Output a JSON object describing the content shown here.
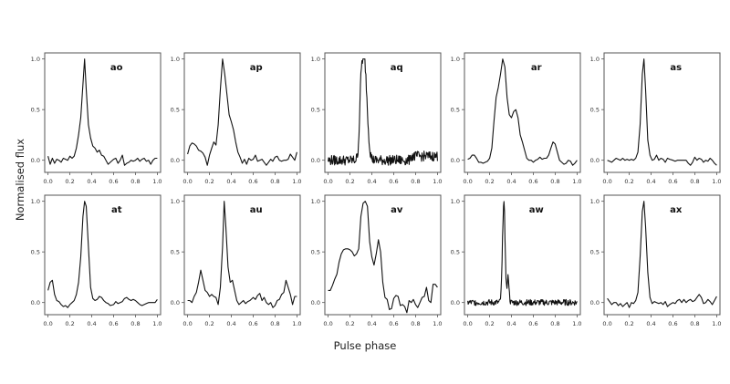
{
  "figure": {
    "ylabel": "Normalised flux",
    "xlabel": "Pulse phase"
  },
  "chart_data": {
    "type": "line",
    "layout": "2x5 small multiples",
    "xlabel": "Pulse phase",
    "ylabel": "Normalised flux",
    "xlim": [
      -0.03,
      1.03
    ],
    "ylim": [
      -0.12,
      1.06
    ],
    "xticks": [
      "0.0",
      "0.2",
      "0.4",
      "0.6",
      "0.8",
      "1.0"
    ],
    "yticks": [
      "0.0",
      "0.5",
      "1.0"
    ],
    "grid": false,
    "legend": "none",
    "panels": [
      {
        "label": "ao",
        "x": [
          0,
          0.02,
          0.04,
          0.06,
          0.08,
          0.1,
          0.12,
          0.14,
          0.16,
          0.18,
          0.2,
          0.22,
          0.24,
          0.26,
          0.28,
          0.3,
          0.32,
          0.335,
          0.35,
          0.37,
          0.39,
          0.41,
          0.43,
          0.45,
          0.47,
          0.49,
          0.51,
          0.53,
          0.55,
          0.57,
          0.6,
          0.62,
          0.64,
          0.66,
          0.68,
          0.7,
          0.72,
          0.74,
          0.76,
          0.78,
          0.8,
          0.82,
          0.84,
          0.86,
          0.88,
          0.9,
          0.92,
          0.94,
          0.96,
          0.98,
          1.0
        ],
        "y": [
          0.04,
          -0.04,
          0.02,
          -0.03,
          0.01,
          0.0,
          -0.02,
          0.02,
          0.01,
          0.0,
          0.04,
          0.02,
          0.04,
          0.12,
          0.25,
          0.42,
          0.75,
          1.0,
          0.7,
          0.35,
          0.22,
          0.14,
          0.12,
          0.08,
          0.1,
          0.05,
          0.04,
          0.0,
          -0.04,
          -0.02,
          0.01,
          0.02,
          -0.03,
          0.0,
          0.05,
          -0.05,
          -0.03,
          -0.02,
          0.0,
          -0.01,
          0.0,
          0.02,
          -0.01,
          0.01,
          0.02,
          -0.01,
          0.0,
          -0.04,
          0.0,
          0.02,
          0.02
        ]
      },
      {
        "label": "ap",
        "x": [
          0,
          0.02,
          0.04,
          0.06,
          0.08,
          0.1,
          0.12,
          0.14,
          0.16,
          0.18,
          0.2,
          0.22,
          0.24,
          0.26,
          0.28,
          0.3,
          0.32,
          0.34,
          0.36,
          0.38,
          0.4,
          0.42,
          0.44,
          0.46,
          0.48,
          0.5,
          0.52,
          0.54,
          0.56,
          0.58,
          0.6,
          0.62,
          0.64,
          0.66,
          0.68,
          0.7,
          0.72,
          0.74,
          0.76,
          0.78,
          0.8,
          0.82,
          0.84,
          0.86,
          0.88,
          0.9,
          0.92,
          0.94,
          0.96,
          0.98,
          1.0
        ],
        "y": [
          0.06,
          0.14,
          0.17,
          0.16,
          0.14,
          0.1,
          0.09,
          0.07,
          0.03,
          -0.05,
          0.05,
          0.12,
          0.18,
          0.15,
          0.35,
          0.7,
          1.0,
          0.85,
          0.65,
          0.45,
          0.38,
          0.3,
          0.18,
          0.08,
          0.03,
          -0.03,
          0.01,
          -0.04,
          0.02,
          0.0,
          0.01,
          0.05,
          -0.01,
          0.0,
          0.01,
          -0.02,
          -0.05,
          -0.02,
          0.01,
          -0.01,
          0.03,
          0.04,
          0.0,
          -0.01,
          0.0,
          0.0,
          0.01,
          0.06,
          0.03,
          0.0,
          0.08
        ]
      },
      {
        "label": "aq",
        "x": "dense (~200 pts); noisy baseline ≈0.0 ±0.05, sharp peak 1.0 at phase ≈0.33, shoulder ≈0.5 at phase ≈0.30",
        "peak_phase": 0.33,
        "peak_value": 1.0,
        "baseline": 0.0,
        "noise": 0.05
      },
      {
        "label": "ar",
        "x": [
          0,
          0.02,
          0.04,
          0.06,
          0.08,
          0.1,
          0.12,
          0.14,
          0.16,
          0.18,
          0.2,
          0.22,
          0.24,
          0.26,
          0.28,
          0.3,
          0.32,
          0.34,
          0.36,
          0.38,
          0.4,
          0.42,
          0.44,
          0.46,
          0.48,
          0.5,
          0.52,
          0.54,
          0.56,
          0.58,
          0.6,
          0.62,
          0.64,
          0.66,
          0.68,
          0.7,
          0.72,
          0.74,
          0.76,
          0.78,
          0.8,
          0.82,
          0.84,
          0.86,
          0.88,
          0.9,
          0.92,
          0.94,
          0.96,
          0.98,
          1.0
        ],
        "y": [
          0.01,
          0.02,
          0.05,
          0.05,
          0.02,
          -0.02,
          -0.02,
          -0.03,
          -0.02,
          -0.01,
          0.02,
          0.12,
          0.38,
          0.62,
          0.72,
          0.85,
          1.0,
          0.92,
          0.62,
          0.45,
          0.42,
          0.48,
          0.5,
          0.42,
          0.25,
          0.18,
          0.1,
          0.02,
          0.0,
          0.0,
          -0.02,
          0.0,
          0.01,
          0.03,
          0.01,
          0.02,
          0.02,
          0.05,
          0.12,
          0.18,
          0.16,
          0.08,
          0.0,
          -0.02,
          -0.04,
          -0.03,
          0.0,
          -0.01,
          -0.05,
          -0.03,
          0.0
        ]
      },
      {
        "label": "as",
        "x": [
          0,
          0.02,
          0.04,
          0.06,
          0.08,
          0.1,
          0.12,
          0.14,
          0.16,
          0.18,
          0.2,
          0.22,
          0.24,
          0.26,
          0.28,
          0.3,
          0.32,
          0.335,
          0.35,
          0.37,
          0.39,
          0.41,
          0.43,
          0.45,
          0.47,
          0.49,
          0.51,
          0.53,
          0.55,
          0.57,
          0.6,
          0.62,
          0.64,
          0.66,
          0.68,
          0.7,
          0.72,
          0.74,
          0.76,
          0.78,
          0.8,
          0.82,
          0.84,
          0.86,
          0.88,
          0.9,
          0.92,
          0.94,
          0.96,
          0.98,
          1.0
        ],
        "y": [
          0.0,
          -0.01,
          -0.02,
          0.0,
          0.02,
          0.01,
          0.0,
          0.02,
          0.0,
          0.01,
          0.0,
          0.01,
          0.0,
          0.02,
          0.08,
          0.35,
          0.85,
          1.0,
          0.7,
          0.2,
          0.05,
          0.0,
          0.01,
          0.05,
          0.0,
          0.02,
          0.01,
          -0.02,
          0.02,
          0.01,
          0.0,
          -0.01,
          0.0,
          0.0,
          0.0,
          0.0,
          0.0,
          -0.03,
          -0.05,
          -0.02,
          0.03,
          0.0,
          0.02,
          0.01,
          -0.02,
          0.0,
          -0.01,
          0.02,
          0.0,
          -0.03,
          -0.05
        ]
      },
      {
        "label": "at",
        "x": [
          0,
          0.02,
          0.04,
          0.06,
          0.08,
          0.1,
          0.12,
          0.14,
          0.16,
          0.18,
          0.2,
          0.22,
          0.24,
          0.26,
          0.28,
          0.3,
          0.32,
          0.335,
          0.35,
          0.37,
          0.39,
          0.41,
          0.43,
          0.45,
          0.47,
          0.49,
          0.51,
          0.53,
          0.55,
          0.57,
          0.6,
          0.62,
          0.64,
          0.66,
          0.68,
          0.7,
          0.72,
          0.74,
          0.76,
          0.78,
          0.8,
          0.82,
          0.84,
          0.86,
          0.88,
          0.9,
          0.92,
          0.94,
          0.96,
          0.98,
          1.0
        ],
        "y": [
          0.12,
          0.2,
          0.22,
          0.08,
          0.02,
          0.01,
          -0.02,
          -0.04,
          -0.03,
          -0.05,
          -0.02,
          0.0,
          0.02,
          0.08,
          0.2,
          0.45,
          0.85,
          1.0,
          0.95,
          0.55,
          0.15,
          0.04,
          0.02,
          0.03,
          0.06,
          0.05,
          0.02,
          0.0,
          -0.01,
          -0.03,
          -0.02,
          0.01,
          -0.01,
          0.0,
          0.01,
          0.04,
          0.05,
          0.03,
          0.02,
          0.03,
          0.02,
          0.0,
          -0.02,
          -0.03,
          -0.02,
          -0.01,
          0.0,
          0.0,
          0.0,
          0.0,
          0.03
        ]
      },
      {
        "label": "au",
        "x": [
          0,
          0.02,
          0.04,
          0.06,
          0.08,
          0.1,
          0.12,
          0.14,
          0.16,
          0.18,
          0.2,
          0.22,
          0.24,
          0.26,
          0.28,
          0.3,
          0.32,
          0.335,
          0.35,
          0.37,
          0.39,
          0.41,
          0.43,
          0.45,
          0.47,
          0.49,
          0.51,
          0.53,
          0.55,
          0.57,
          0.6,
          0.62,
          0.64,
          0.66,
          0.68,
          0.7,
          0.72,
          0.74,
          0.76,
          0.78,
          0.8,
          0.82,
          0.84,
          0.86,
          0.88,
          0.9,
          0.92,
          0.94,
          0.96,
          0.98,
          1.0
        ],
        "y": [
          0.02,
          0.02,
          0.0,
          0.06,
          0.1,
          0.2,
          0.32,
          0.22,
          0.12,
          0.1,
          0.06,
          0.08,
          0.06,
          0.05,
          -0.02,
          0.15,
          0.55,
          1.0,
          0.75,
          0.35,
          0.2,
          0.22,
          0.12,
          0.02,
          -0.02,
          0.0,
          0.02,
          -0.01,
          0.01,
          0.02,
          0.05,
          0.03,
          0.07,
          0.09,
          0.02,
          0.05,
          0.0,
          -0.02,
          0.0,
          -0.05,
          -0.03,
          0.02,
          0.03,
          0.08,
          0.1,
          0.22,
          0.15,
          0.08,
          -0.02,
          0.06,
          0.06
        ]
      },
      {
        "label": "av",
        "x": [
          0,
          0.02,
          0.04,
          0.06,
          0.08,
          0.1,
          0.12,
          0.14,
          0.16,
          0.18,
          0.2,
          0.22,
          0.24,
          0.26,
          0.28,
          0.3,
          0.32,
          0.34,
          0.36,
          0.38,
          0.4,
          0.42,
          0.44,
          0.46,
          0.48,
          0.5,
          0.52,
          0.54,
          0.56,
          0.58,
          0.6,
          0.62,
          0.64,
          0.66,
          0.68,
          0.7,
          0.72,
          0.74,
          0.76,
          0.78,
          0.8,
          0.82,
          0.84,
          0.86,
          0.88,
          0.9,
          0.92,
          0.94,
          0.96,
          0.98,
          1.0
        ],
        "y": [
          0.12,
          0.12,
          0.17,
          0.23,
          0.28,
          0.4,
          0.48,
          0.52,
          0.53,
          0.53,
          0.52,
          0.5,
          0.46,
          0.48,
          0.53,
          0.85,
          0.98,
          1.0,
          0.95,
          0.6,
          0.45,
          0.37,
          0.48,
          0.62,
          0.5,
          0.2,
          0.05,
          0.03,
          -0.07,
          -0.06,
          0.04,
          0.07,
          0.06,
          -0.03,
          -0.02,
          -0.04,
          -0.1,
          0.02,
          0.0,
          0.03,
          -0.02,
          -0.05,
          0.0,
          0.05,
          0.06,
          0.15,
          0.02,
          0.0,
          0.18,
          0.18,
          0.15
        ]
      },
      {
        "label": "aw",
        "x": "dense (~250 pts); noisy baseline ≈0.0 ±0.03, narrow peak 1.0 at phase ≈0.33, secondary peak ≈0.25 at phase ≈0.37",
        "peak_phase": 0.33,
        "peak_value": 1.0,
        "secondary_phase": 0.37,
        "secondary_value": 0.25,
        "baseline": 0.0,
        "noise": 0.03
      },
      {
        "label": "ax",
        "x": [
          0,
          0.02,
          0.04,
          0.06,
          0.08,
          0.1,
          0.12,
          0.14,
          0.16,
          0.18,
          0.2,
          0.22,
          0.24,
          0.26,
          0.28,
          0.3,
          0.32,
          0.335,
          0.35,
          0.37,
          0.39,
          0.41,
          0.43,
          0.45,
          0.47,
          0.49,
          0.51,
          0.53,
          0.55,
          0.57,
          0.6,
          0.62,
          0.64,
          0.66,
          0.68,
          0.7,
          0.72,
          0.74,
          0.76,
          0.78,
          0.8,
          0.82,
          0.84,
          0.86,
          0.88,
          0.9,
          0.92,
          0.94,
          0.96,
          0.98,
          1.0
        ],
        "y": [
          0.04,
          0.01,
          -0.02,
          0.0,
          0.0,
          -0.03,
          -0.01,
          -0.04,
          -0.02,
          0.0,
          -0.05,
          0.0,
          -0.01,
          0.02,
          0.1,
          0.45,
          0.9,
          1.0,
          0.75,
          0.3,
          0.05,
          -0.01,
          0.01,
          0.0,
          -0.01,
          0.0,
          -0.02,
          0.01,
          -0.04,
          -0.02,
          0.0,
          -0.01,
          0.02,
          0.03,
          0.0,
          0.03,
          0.0,
          0.02,
          0.03,
          0.01,
          0.02,
          0.05,
          0.08,
          0.05,
          -0.01,
          0.0,
          0.03,
          0.01,
          -0.02,
          0.02,
          0.06
        ]
      }
    ]
  }
}
